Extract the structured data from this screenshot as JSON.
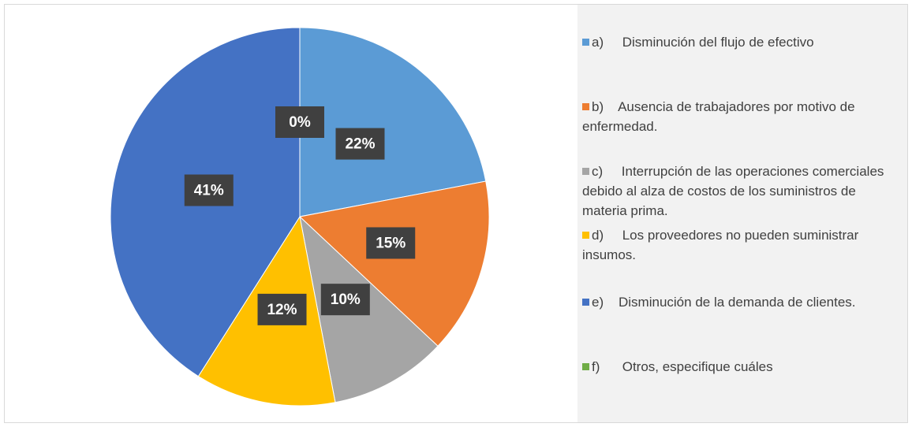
{
  "chart_data": {
    "type": "pie",
    "categories": [
      "a)     Disminución del flujo de efectivo",
      "b)    Ausencia de trabajadores por motivo de enfermedad.",
      "c)     Interrupción de las operaciones comerciales debido al alza de costos de los suministros de materia prima.",
      "d)     Los proveedores no pueden suministrar insumos.",
      "e)    Disminución de la demanda de clientes.",
      "f)      Otros, especifique cuáles"
    ],
    "values": [
      22,
      15,
      10,
      12,
      41,
      0
    ],
    "value_labels": [
      "22%",
      "15%",
      "10%",
      "12%",
      "41%",
      "0%"
    ],
    "colors": [
      "#5b9bd5",
      "#ed7d31",
      "#a5a5a5",
      "#ffc000",
      "#4472c4",
      "#70ad47"
    ],
    "legend": "right"
  }
}
